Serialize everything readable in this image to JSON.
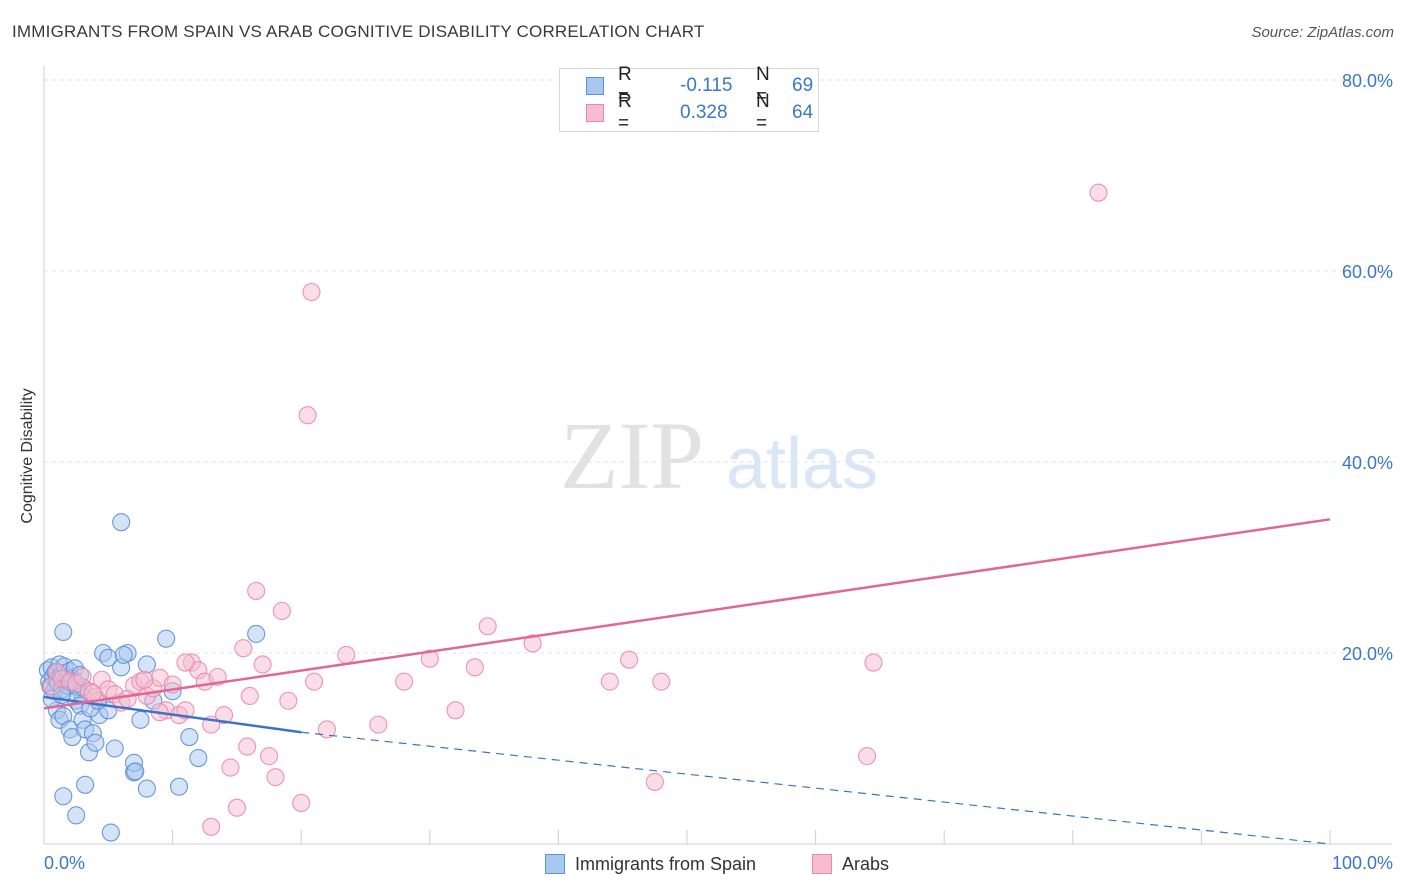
{
  "title": "IMMIGRANTS FROM SPAIN VS ARAB COGNITIVE DISABILITY CORRELATION CHART",
  "source": "Source: ZipAtlas.com",
  "watermark": {
    "zip": "ZIP",
    "atlas": "atlas"
  },
  "stats": [
    {
      "r_label": "R =",
      "r_value": "-0.115",
      "n_label": "N =",
      "n_value": "69"
    },
    {
      "r_label": "R =",
      "r_value": "0.328",
      "n_label": "N =",
      "n_value": "64"
    }
  ],
  "legend": {
    "spain": "Immigrants from Spain",
    "arabs": "Arabs"
  },
  "colors": {
    "spain_fill": "#a9c8f0",
    "spain_stroke": "#5b8fd6",
    "spain_line": "#3a73c9",
    "arabs_fill": "#f7bcd0",
    "arabs_stroke": "#e98aaa",
    "arabs_line": "#e06893",
    "tick_label": "#3a78c9",
    "grid": "#e3e3e3"
  },
  "chart_data": {
    "type": "scatter",
    "xlabel": "",
    "ylabel": "Cognitive Disability",
    "xlim": [
      0,
      100
    ],
    "ylim": [
      0,
      80
    ],
    "x_tick_labels": [
      "0.0%",
      "100.0%"
    ],
    "y_ticks": [
      20,
      40,
      60,
      80
    ],
    "y_tick_labels": [
      "20.0%",
      "40.0%",
      "60.0%",
      "80.0%"
    ],
    "grid": true,
    "series": [
      {
        "name": "Immigrants from Spain",
        "trend": {
          "x0": 0,
          "y0": 15.4,
          "x1": 20,
          "y1": 11.7,
          "dashed_to_x": 100,
          "dashed_to_y": 0
        },
        "points": [
          [
            0.3,
            18.2
          ],
          [
            0.4,
            17.0
          ],
          [
            0.5,
            16.5
          ],
          [
            0.6,
            18.5
          ],
          [
            0.7,
            17.5
          ],
          [
            0.8,
            16.0
          ],
          [
            0.9,
            18.0
          ],
          [
            1.0,
            17.2
          ],
          [
            1.1,
            16.8
          ],
          [
            1.2,
            18.8
          ],
          [
            1.3,
            17.6
          ],
          [
            1.4,
            16.2
          ],
          [
            1.5,
            17.9
          ],
          [
            1.6,
            18.6
          ],
          [
            1.7,
            17.1
          ],
          [
            1.8,
            16.6
          ],
          [
            1.9,
            17.4
          ],
          [
            2.0,
            18.1
          ],
          [
            2.1,
            16.9
          ],
          [
            2.2,
            17.3
          ],
          [
            2.4,
            18.4
          ],
          [
            2.6,
            16.4
          ],
          [
            2.8,
            17.7
          ],
          [
            3.0,
            15.5
          ],
          [
            1.0,
            14.0
          ],
          [
            1.2,
            13.0
          ],
          [
            1.5,
            13.4
          ],
          [
            2.0,
            12.0
          ],
          [
            2.2,
            11.2
          ],
          [
            2.5,
            15.0
          ],
          [
            2.8,
            14.5
          ],
          [
            3.0,
            13.0
          ],
          [
            3.2,
            12.0
          ],
          [
            3.5,
            9.6
          ],
          [
            3.8,
            11.6
          ],
          [
            4.0,
            10.6
          ],
          [
            4.3,
            13.5
          ],
          [
            4.6,
            20.0
          ],
          [
            5.0,
            14.0
          ],
          [
            5.5,
            10.0
          ],
          [
            6.0,
            18.5
          ],
          [
            6.5,
            20.0
          ],
          [
            7.0,
            7.5
          ],
          [
            7.0,
            8.5
          ],
          [
            7.5,
            13.0
          ],
          [
            8.0,
            18.8
          ],
          [
            8.5,
            15.0
          ],
          [
            9.5,
            21.5
          ],
          [
            10.0,
            16.0
          ],
          [
            11.3,
            11.2
          ],
          [
            12.0,
            9.0
          ],
          [
            16.5,
            22.0
          ],
          [
            6.0,
            33.7
          ],
          [
            1.5,
            22.2
          ],
          [
            1.5,
            5.0
          ],
          [
            2.5,
            3.0
          ],
          [
            3.2,
            6.2
          ],
          [
            5.2,
            1.2
          ],
          [
            8.0,
            5.8
          ],
          [
            10.5,
            6.0
          ],
          [
            0.6,
            15.2
          ],
          [
            1.4,
            15.6
          ],
          [
            2.3,
            17.0
          ],
          [
            3.6,
            14.2
          ],
          [
            4.2,
            15.0
          ],
          [
            5.0,
            19.5
          ],
          [
            6.2,
            19.8
          ],
          [
            7.1,
            7.6
          ],
          [
            3.0,
            16.4
          ]
        ]
      },
      {
        "name": "Arabs",
        "trend": {
          "x0": 0,
          "y0": 14.2,
          "x1": 100,
          "y1": 34.0
        },
        "points": [
          [
            0.6,
            16.5
          ],
          [
            1.0,
            18.0
          ],
          [
            1.4,
            17.3
          ],
          [
            2.0,
            17.0
          ],
          [
            2.5,
            16.8
          ],
          [
            3.0,
            17.5
          ],
          [
            3.5,
            16.0
          ],
          [
            4.0,
            15.4
          ],
          [
            4.5,
            17.2
          ],
          [
            5.0,
            16.2
          ],
          [
            5.5,
            15.7
          ],
          [
            6.0,
            14.8
          ],
          [
            6.5,
            15.2
          ],
          [
            7.0,
            16.6
          ],
          [
            7.5,
            17.0
          ],
          [
            8.0,
            15.5
          ],
          [
            8.5,
            16.3
          ],
          [
            9.0,
            17.4
          ],
          [
            9.5,
            14.0
          ],
          [
            10.0,
            16.7
          ],
          [
            10.5,
            13.5
          ],
          [
            11.0,
            14.0
          ],
          [
            11.5,
            19.0
          ],
          [
            12.0,
            18.2
          ],
          [
            12.5,
            17.0
          ],
          [
            13.0,
            12.5
          ],
          [
            13.5,
            17.5
          ],
          [
            14.0,
            13.5
          ],
          [
            14.5,
            8.0
          ],
          [
            15.0,
            3.8
          ],
          [
            15.5,
            20.5
          ],
          [
            16.0,
            15.5
          ],
          [
            16.5,
            26.5
          ],
          [
            17.0,
            18.8
          ],
          [
            17.5,
            9.2
          ],
          [
            18.5,
            24.4
          ],
          [
            19.0,
            15.0
          ],
          [
            20.0,
            4.3
          ],
          [
            21.0,
            17.0
          ],
          [
            22.0,
            12.0
          ],
          [
            23.5,
            19.8
          ],
          [
            26.0,
            12.5
          ],
          [
            28.0,
            17.0
          ],
          [
            30.0,
            19.4
          ],
          [
            32.0,
            14.0
          ],
          [
            33.5,
            18.5
          ],
          [
            34.5,
            22.8
          ],
          [
            38.0,
            21.0
          ],
          [
            44.0,
            17.0
          ],
          [
            45.5,
            19.3
          ],
          [
            47.5,
            6.5
          ],
          [
            48.0,
            17.0
          ],
          [
            64.0,
            9.2
          ],
          [
            64.5,
            19.0
          ],
          [
            82.0,
            68.2
          ],
          [
            20.8,
            57.8
          ],
          [
            20.5,
            44.9
          ],
          [
            13.0,
            1.8
          ],
          [
            18.0,
            7.0
          ],
          [
            11.0,
            19.0
          ],
          [
            9.0,
            13.8
          ],
          [
            3.8,
            15.8
          ],
          [
            7.8,
            17.2
          ],
          [
            15.8,
            10.2
          ]
        ]
      }
    ]
  }
}
